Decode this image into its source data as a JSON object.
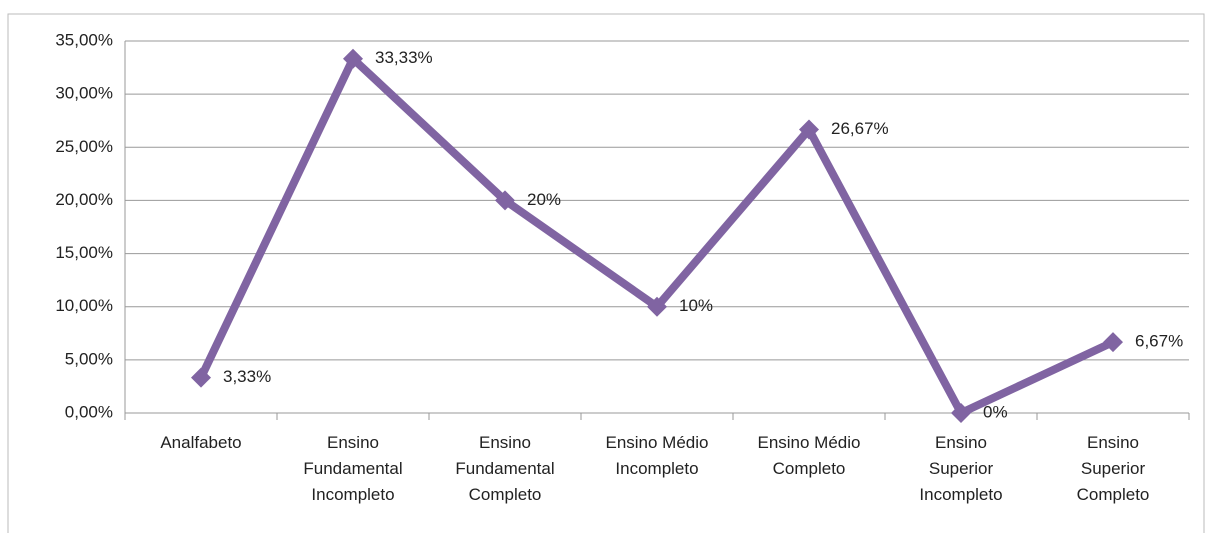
{
  "chart_data": {
    "type": "line",
    "categories": [
      "Analfabeto",
      "Ensino\nFundamental\nIncompleto",
      "Ensino\nFundamental\nCompleto",
      "Ensino Médio\nIncompleto",
      "Ensino Médio\nCompleto",
      "Ensino\nSuperior\nIncompleto",
      "Ensino\nSuperior\nCompleto"
    ],
    "series": [
      {
        "name": null,
        "color": "#8064a2",
        "values": [
          3.33,
          33.33,
          20,
          10,
          26.67,
          0,
          6.67
        ],
        "value_labels": [
          "3,33%",
          "33,33%",
          "20%",
          "10%",
          "26,67%",
          "0%",
          "6,67%"
        ]
      }
    ],
    "ylim": [
      0,
      35
    ],
    "yticks": [
      {
        "value": 0,
        "label": "0,00%"
      },
      {
        "value": 5,
        "label": "5,00%"
      },
      {
        "value": 10,
        "label": "10,00%"
      },
      {
        "value": 15,
        "label": "15,00%"
      },
      {
        "value": 20,
        "label": "20,00%"
      },
      {
        "value": 25,
        "label": "25,00%"
      },
      {
        "value": 30,
        "label": "30,00%"
      },
      {
        "value": 35,
        "label": "35,00%"
      }
    ],
    "grid": true
  }
}
